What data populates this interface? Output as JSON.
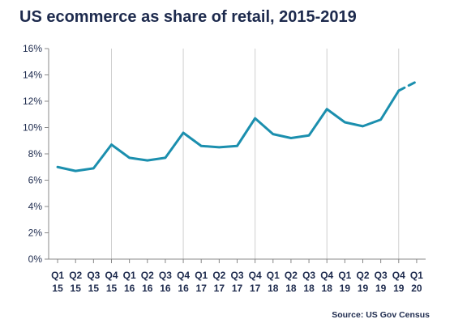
{
  "chart_data": {
    "type": "line",
    "title": "US ecommerce as share of retail, 2015-2019",
    "source": "Source: US Gov Census",
    "xlabel": "",
    "ylabel": "",
    "ylim": [
      0,
      16
    ],
    "y_ticks": [
      "0%",
      "2%",
      "4%",
      "6%",
      "8%",
      "10%",
      "12%",
      "14%",
      "16%"
    ],
    "grid": "vertical lines at each Q4",
    "categories": [
      [
        "Q1",
        "15"
      ],
      [
        "Q2",
        "15"
      ],
      [
        "Q3",
        "15"
      ],
      [
        "Q4",
        "15"
      ],
      [
        "Q1",
        "16"
      ],
      [
        "Q2",
        "16"
      ],
      [
        "Q3",
        "16"
      ],
      [
        "Q4",
        "16"
      ],
      [
        "Q1",
        "17"
      ],
      [
        "Q2",
        "17"
      ],
      [
        "Q3",
        "17"
      ],
      [
        "Q4",
        "17"
      ],
      [
        "Q1",
        "18"
      ],
      [
        "Q2",
        "18"
      ],
      [
        "Q3",
        "18"
      ],
      [
        "Q4",
        "18"
      ],
      [
        "Q1",
        "19"
      ],
      [
        "Q2",
        "19"
      ],
      [
        "Q3",
        "19"
      ],
      [
        "Q4",
        "19"
      ],
      [
        "Q1",
        "20"
      ]
    ],
    "series": [
      {
        "color": "#1b8fae",
        "values": [
          7.0,
          6.7,
          6.9,
          8.7,
          7.7,
          7.5,
          7.7,
          9.6,
          8.6,
          8.5,
          8.6,
          10.7,
          9.5,
          9.2,
          9.4,
          11.4,
          10.4,
          10.1,
          10.6,
          12.8,
          13.5
        ],
        "dashed_from_index": 19
      }
    ],
    "colors": {
      "line": "#1b8fae",
      "text": "#1d2a4d",
      "grid": "#cfcfcf",
      "axis": "#888888"
    }
  }
}
